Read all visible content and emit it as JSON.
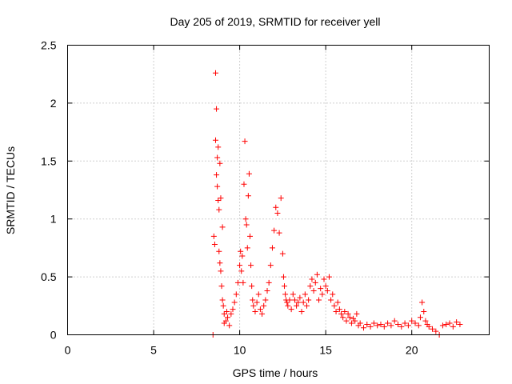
{
  "chart_data": {
    "type": "scatter",
    "title": "Day 205 of 2019, SRMTID for receiver yell",
    "xlabel": "GPS time / hours",
    "ylabel": "SRMTID / TECUs",
    "xlim": [
      0,
      24.5
    ],
    "ylim": [
      0,
      2.5
    ],
    "xticks": [
      0,
      5,
      10,
      15,
      20
    ],
    "xtick_labels": [
      "0",
      "5",
      "10",
      "15",
      "20"
    ],
    "yticks": [
      0,
      0.5,
      1,
      1.5,
      2,
      2.5
    ],
    "ytick_labels": [
      "0",
      "0.5",
      "1",
      "1.5",
      "2",
      "2.5"
    ],
    "grid": true,
    "marker": "+",
    "series": [
      {
        "name": "SRMTID",
        "color": "#ff0000",
        "x": [
          8.45,
          8.5,
          8.55,
          8.6,
          8.6,
          8.65,
          8.65,
          8.7,
          8.7,
          8.75,
          8.75,
          8.8,
          8.8,
          8.85,
          8.85,
          8.9,
          8.9,
          8.95,
          9.0,
          9.0,
          9.05,
          9.1,
          9.1,
          9.2,
          9.25,
          9.3,
          9.4,
          9.5,
          9.6,
          9.7,
          9.8,
          9.9,
          10.0,
          10.05,
          10.1,
          10.15,
          10.2,
          10.25,
          10.3,
          10.35,
          10.4,
          10.45,
          10.5,
          10.55,
          10.6,
          10.65,
          10.7,
          10.75,
          10.8,
          10.9,
          11.0,
          11.1,
          11.2,
          11.3,
          11.4,
          11.5,
          11.6,
          11.7,
          11.8,
          11.9,
          12.0,
          12.1,
          12.2,
          12.3,
          12.4,
          12.5,
          12.55,
          12.6,
          12.65,
          12.7,
          12.75,
          12.8,
          12.9,
          13.0,
          13.1,
          13.2,
          13.3,
          13.4,
          13.5,
          13.6,
          13.7,
          13.8,
          13.9,
          14.0,
          14.1,
          14.2,
          14.3,
          14.4,
          14.5,
          14.6,
          14.7,
          14.8,
          14.9,
          15.0,
          15.1,
          15.2,
          15.3,
          15.4,
          15.5,
          15.6,
          15.7,
          15.8,
          15.9,
          16.0,
          16.1,
          16.2,
          16.3,
          16.4,
          16.5,
          16.6,
          16.7,
          16.8,
          16.9,
          17.0,
          17.2,
          17.4,
          17.6,
          17.8,
          18.0,
          18.2,
          18.4,
          18.6,
          18.8,
          19.0,
          19.2,
          19.4,
          19.6,
          19.8,
          20.0,
          20.2,
          20.4,
          20.5,
          20.6,
          20.7,
          20.8,
          20.9,
          21.0,
          21.2,
          21.4,
          21.6,
          21.8,
          22.0,
          22.2,
          22.4,
          22.6,
          22.8
        ],
        "y": [
          0.0,
          0.85,
          0.78,
          2.26,
          1.68,
          1.95,
          1.38,
          1.53,
          1.28,
          1.62,
          1.16,
          1.08,
          0.72,
          1.48,
          0.62,
          1.18,
          0.55,
          0.42,
          0.93,
          0.3,
          0.25,
          0.18,
          0.1,
          0.12,
          0.2,
          0.15,
          0.08,
          0.18,
          0.22,
          0.28,
          0.35,
          0.45,
          0.6,
          0.72,
          0.55,
          0.68,
          0.45,
          1.3,
          1.67,
          1.0,
          0.95,
          0.75,
          1.2,
          1.39,
          0.85,
          0.6,
          0.42,
          0.3,
          0.25,
          0.2,
          0.28,
          0.35,
          0.22,
          0.18,
          0.25,
          0.3,
          0.38,
          0.45,
          0.6,
          0.75,
          0.9,
          1.1,
          1.05,
          0.88,
          1.18,
          0.7,
          0.5,
          0.42,
          0.35,
          0.3,
          0.28,
          0.25,
          0.3,
          0.22,
          0.35,
          0.3,
          0.25,
          0.28,
          0.32,
          0.2,
          0.28,
          0.35,
          0.25,
          0.3,
          0.42,
          0.48,
          0.38,
          0.45,
          0.52,
          0.3,
          0.4,
          0.35,
          0.48,
          0.42,
          0.38,
          0.5,
          0.3,
          0.35,
          0.25,
          0.2,
          0.28,
          0.22,
          0.18,
          0.15,
          0.2,
          0.12,
          0.18,
          0.15,
          0.1,
          0.14,
          0.12,
          0.18,
          0.08,
          0.1,
          0.06,
          0.09,
          0.07,
          0.1,
          0.08,
          0.09,
          0.07,
          0.1,
          0.08,
          0.12,
          0.09,
          0.07,
          0.1,
          0.08,
          0.12,
          0.1,
          0.08,
          0.15,
          0.28,
          0.2,
          0.12,
          0.09,
          0.07,
          0.05,
          0.03,
          0.0,
          0.08,
          0.09,
          0.1,
          0.07,
          0.11,
          0.09
        ]
      }
    ]
  }
}
